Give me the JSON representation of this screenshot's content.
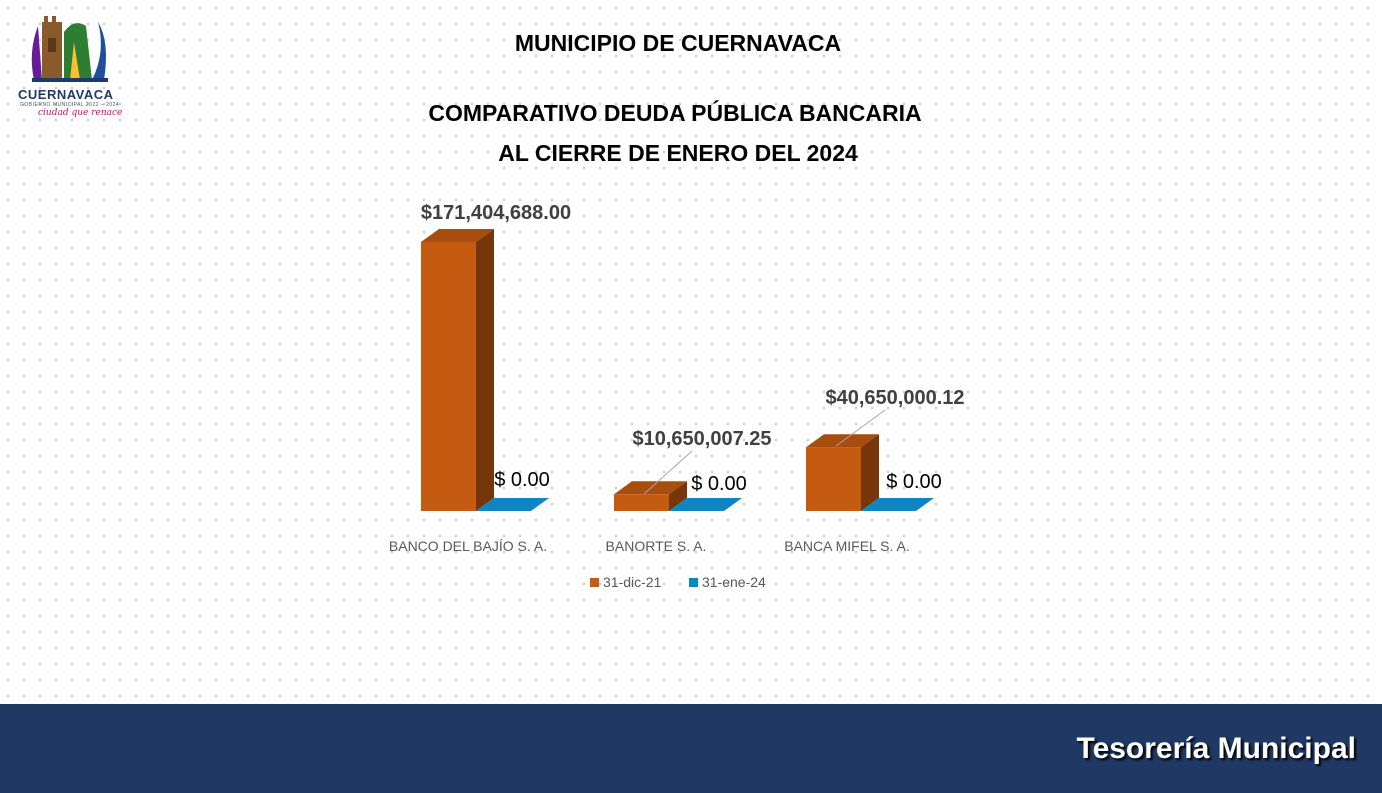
{
  "header": {
    "logo_text": "CUERNAVACA",
    "logo_subtext": "GOBIERNO MUNICIPAL 2022 – 2024",
    "logo_slogan": "ciudad que renace",
    "title_line1": "MUNICIPIO DE CUERNAVACA",
    "title_line2": "COMPARATIVO DEUDA PÚBLICA BANCARIA",
    "title_line3": "AL CIERRE DE ENERO DEL 2024"
  },
  "chart_data": {
    "type": "bar",
    "style": "3d-clustered",
    "categories": [
      "BANCO DEL BAJÍO S. A.",
      "BANORTE S. A.",
      "BANCA MIFEL S. A."
    ],
    "series": [
      {
        "name": "31-dic-21",
        "color": "#c55a11",
        "values": [
          171404688.0,
          10650007.25,
          40650000.12
        ],
        "labels": [
          "$171,404,688.00",
          "$10,650,007.25",
          "$40,650,000.12"
        ]
      },
      {
        "name": "31-ene-24",
        "color": "#0e86c4",
        "values": [
          0,
          0,
          0
        ],
        "labels": [
          "$ 0.00",
          "$ 0.00",
          "$ 0.00"
        ]
      }
    ],
    "legend": "bottom",
    "grid": false
  },
  "footer": {
    "text": "Tesorería Municipal"
  }
}
